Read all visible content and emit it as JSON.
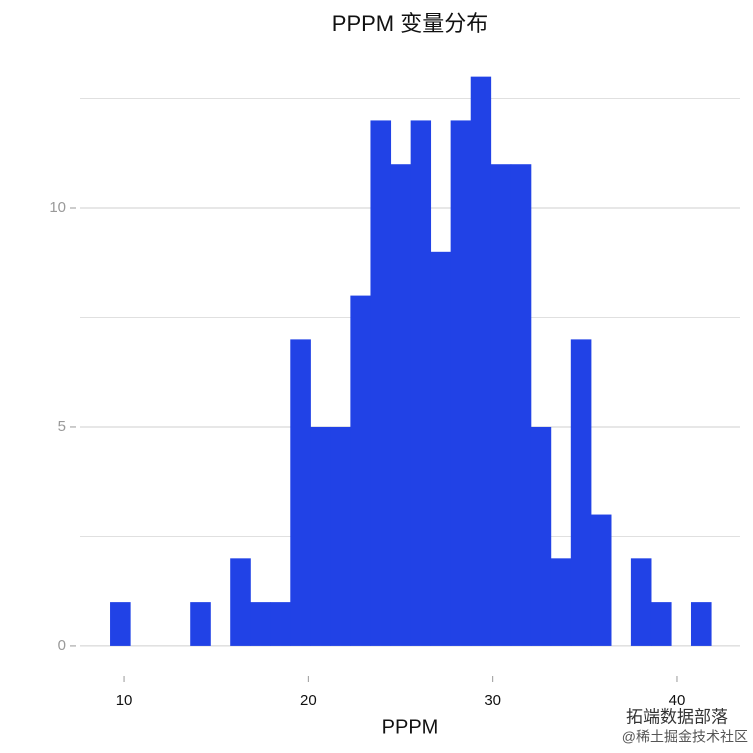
{
  "chart_data": {
    "type": "histogram",
    "title": "PPPM 变量分布",
    "x_label": "PPPM",
    "bins": [
      9.24,
      10.33,
      11.41,
      12.5,
      13.59,
      14.68,
      15.76,
      16.85,
      17.94,
      19.02,
      20.11,
      21.2,
      22.28,
      23.37,
      24.46,
      25.55,
      26.63,
      27.72,
      28.81,
      29.89,
      30.98,
      32.07,
      33.15,
      34.24,
      35.33,
      36.42,
      37.5,
      38.59,
      39.68,
      40.76,
      41.85
    ],
    "values": [
      1,
      0,
      0,
      0,
      1,
      0,
      2,
      1,
      1,
      7,
      5,
      5,
      8,
      12,
      11,
      12,
      9,
      12,
      13,
      11,
      11,
      5,
      2,
      7,
      3,
      0,
      2,
      1,
      0,
      1
    ],
    "color": "#2142e6",
    "xlim": [
      7.61,
      43.42
    ],
    "xticks": [
      10,
      20,
      30,
      40
    ],
    "ylim": [
      -0.55,
      13.38
    ],
    "yticks": [
      0,
      5,
      10
    ],
    "minor_yticks": [
      2.5,
      7.5,
      12.5
    ],
    "grid": true,
    "watermark": [
      "拓端数据部落",
      "@稀土掘金技术社区"
    ]
  }
}
